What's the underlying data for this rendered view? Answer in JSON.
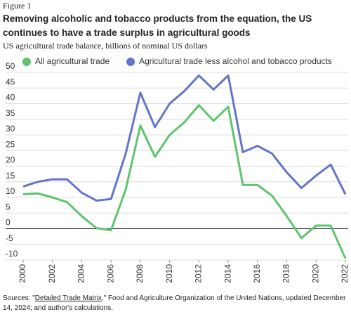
{
  "figure_label": "Figure 1",
  "chart_data": {
    "type": "line",
    "title": "Removing alcoholic and tobacco products from the equation, the US continues to have a trade surplus in agricultural goods",
    "subtitle": "US agricultural trade balance, billions of nominal US dollars",
    "x": [
      2000,
      2001,
      2002,
      2003,
      2004,
      2005,
      2006,
      2007,
      2008,
      2009,
      2010,
      2011,
      2012,
      2013,
      2014,
      2015,
      2016,
      2017,
      2018,
      2019,
      2020,
      2021,
      2022
    ],
    "xlim": [
      2000,
      2022
    ],
    "xticks": [
      2000,
      2002,
      2004,
      2006,
      2008,
      2010,
      2012,
      2014,
      2016,
      2018,
      2020,
      2022
    ],
    "ylim": [
      -10,
      50
    ],
    "yticks": [
      -10,
      -5,
      0,
      5,
      10,
      15,
      20,
      25,
      30,
      35,
      40,
      45,
      50
    ],
    "grid": true,
    "legend": "top",
    "series": [
      {
        "name": "All agricultural trade",
        "color": "#5ec46e",
        "values": [
          11,
          11.3,
          10,
          8.5,
          4,
          0.2,
          -0.5,
          12.5,
          33,
          23,
          30,
          34,
          39.5,
          34.5,
          39,
          14,
          14,
          10.5,
          4,
          -3,
          1,
          1,
          -9.5
        ]
      },
      {
        "name": "Agricultural trade less alcohol and tobacco products",
        "color": "#6474c9",
        "values": [
          13.5,
          15,
          15.8,
          15.8,
          11.5,
          9,
          9.5,
          24,
          43.5,
          32.5,
          40,
          44,
          49,
          44.5,
          49,
          24.5,
          26.5,
          24,
          18,
          13,
          17,
          20.5,
          11
        ]
      }
    ]
  },
  "source": {
    "prefix": "Sources: \"",
    "link": "Detailed Trade Matrix",
    "suffix": ",\" Food and Agriculture Organization of the United Nations, updated December 14, 2024; and author's calculations."
  }
}
